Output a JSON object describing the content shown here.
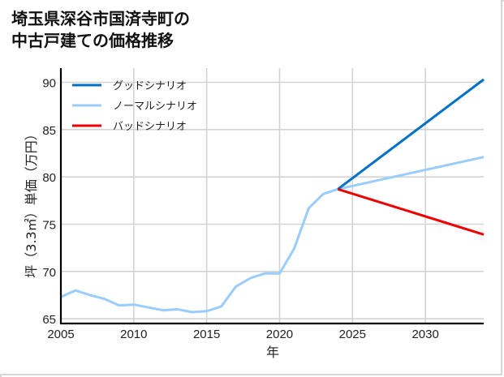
{
  "title_lines": [
    "埼玉県深谷市国済寺町の",
    "中古戸建ての価格推移"
  ],
  "chart_data": {
    "type": "line",
    "title": "埼玉県深谷市国済寺町の中古戸建ての価格推移",
    "xlabel": "年",
    "ylabel": "坪（3.3㎡）単価（万円）",
    "xlim": [
      2005,
      2034
    ],
    "ylim": [
      64.5,
      91.5
    ],
    "xticks": [
      2005,
      2010,
      2015,
      2020,
      2025,
      2030
    ],
    "yticks": [
      65,
      70,
      75,
      80,
      85,
      90
    ],
    "grid": true,
    "legend_position": "upper left",
    "series": [
      {
        "name": "グッドシナリオ",
        "color": "#0070c8",
        "x": [
          2024,
          2034
        ],
        "values": [
          78.7,
          90.3
        ]
      },
      {
        "name": "ノーマルシナリオ",
        "color": "#99ccff",
        "x": [
          2005,
          2006,
          2007,
          2008,
          2009,
          2010,
          2011,
          2012,
          2013,
          2014,
          2015,
          2016,
          2017,
          2018,
          2019,
          2020,
          2021,
          2022,
          2023,
          2024,
          2034
        ],
        "values": [
          67.3,
          68.0,
          67.5,
          67.1,
          66.4,
          66.5,
          66.2,
          65.9,
          66.0,
          65.7,
          65.8,
          66.3,
          68.4,
          69.3,
          69.8,
          69.8,
          72.4,
          76.7,
          78.2,
          78.7,
          82.1
        ]
      },
      {
        "name": "バッドシナリオ",
        "color": "#ee0000",
        "x": [
          2024,
          2034
        ],
        "values": [
          78.7,
          73.9
        ]
      }
    ]
  }
}
